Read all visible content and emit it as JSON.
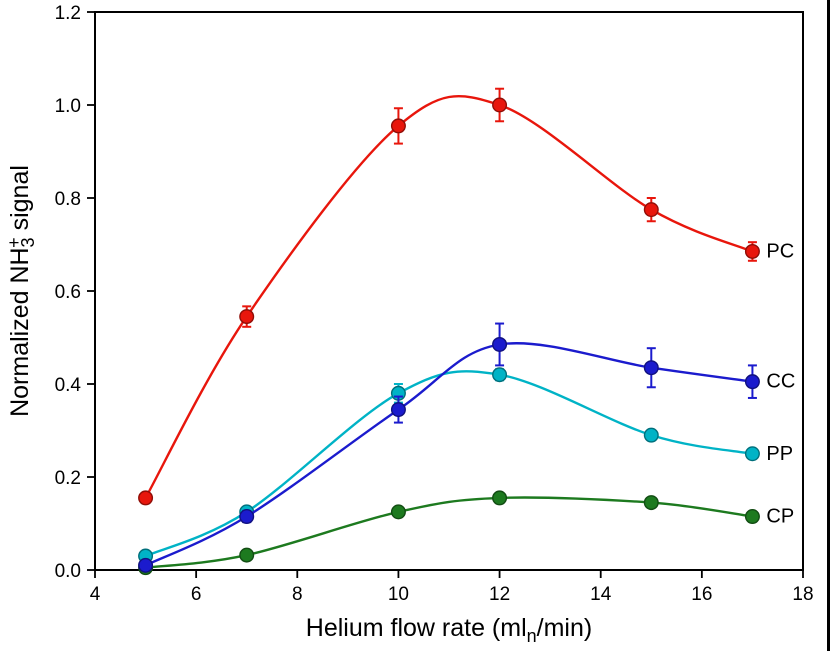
{
  "figure": {
    "background": "#ffffff",
    "frame_color": "#000000"
  },
  "chart_data": {
    "type": "line",
    "title": "",
    "xlabel_parts": [
      {
        "t": "Helium flow rate (ml"
      },
      {
        "t": "n",
        "sub": true
      },
      {
        "t": "/min)"
      }
    ],
    "ylabel_parts": [
      {
        "t": "Normalized NH"
      },
      {
        "t": "3",
        "sub": true
      },
      {
        "t": "+",
        "sup": true,
        "stack": true
      },
      {
        "t": " signal"
      }
    ],
    "xlim": [
      4,
      18
    ],
    "ylim": [
      0.0,
      1.2
    ],
    "xticks": [
      4,
      6,
      8,
      10,
      12,
      14,
      16,
      18
    ],
    "xtick_labels": [
      "4",
      "6",
      "8",
      "10",
      "12",
      "14",
      "16",
      "18"
    ],
    "yticks": [
      0.0,
      0.2,
      0.4,
      0.6,
      0.8,
      1.0,
      1.2
    ],
    "ytick_labels": [
      "0.0",
      "0.2",
      "0.4",
      "0.6",
      "0.8",
      "1.0",
      "1.2"
    ],
    "grid": false,
    "legend_position": "end-of-line-labels",
    "x": [
      5,
      7,
      10,
      12,
      15,
      17
    ],
    "series": [
      {
        "name": "CP",
        "color": "#1d7a1f",
        "values": [
          0.005,
          0.032,
          0.125,
          0.155,
          0.145,
          0.115
        ],
        "errors": [
          0,
          0,
          0,
          0,
          0,
          0
        ]
      },
      {
        "name": "PP",
        "color": "#00b3c6",
        "values": [
          0.03,
          0.125,
          0.38,
          0.42,
          0.29,
          0.25
        ],
        "errors": [
          0.004,
          0.008,
          0.02,
          0.012,
          0.008,
          0.008
        ]
      },
      {
        "name": "CC",
        "color": "#1b1bcd",
        "values": [
          0.01,
          0.115,
          0.345,
          0.485,
          0.435,
          0.405
        ],
        "errors": [
          0.004,
          0.012,
          0.028,
          0.045,
          0.042,
          0.035
        ]
      },
      {
        "name": "PC",
        "color": "#e8160c",
        "values": [
          0.155,
          0.545,
          0.955,
          1.0,
          0.775,
          0.685
        ],
        "errors": [
          0.008,
          0.022,
          0.038,
          0.035,
          0.025,
          0.02
        ]
      }
    ]
  }
}
